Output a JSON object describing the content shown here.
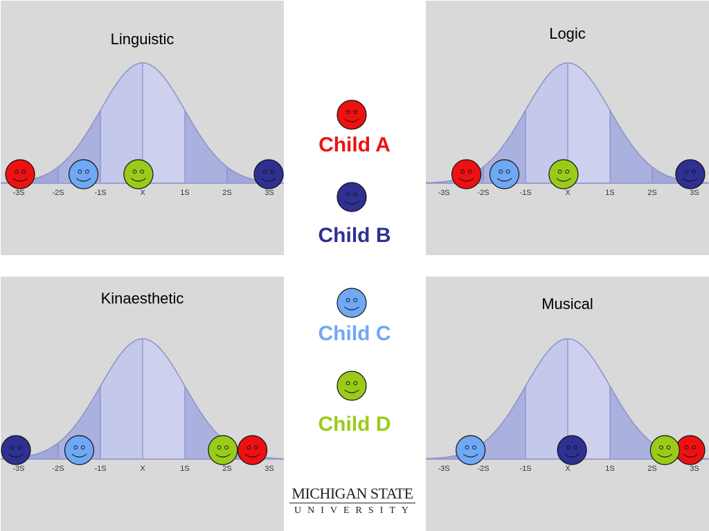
{
  "children": [
    {
      "id": "A",
      "label": "Child A",
      "color": "#ee1111"
    },
    {
      "id": "B",
      "label": "Child B",
      "color": "#2e3192"
    },
    {
      "id": "C",
      "label": "Child C",
      "color": "#6fa8f5"
    },
    {
      "id": "D",
      "label": "Child D",
      "color": "#99cc1a"
    }
  ],
  "axis_ticks": [
    "-3S",
    "-2S",
    "-1S",
    "X",
    "1S",
    "2S",
    "3S"
  ],
  "chart_data": [
    {
      "type": "scatter",
      "title": "Linguistic",
      "positions_in_sd": {
        "A": -2.9,
        "B": 3.0,
        "C": -1.4,
        "D": -0.1
      }
    },
    {
      "type": "scatter",
      "title": "Logic",
      "positions_in_sd": {
        "A": -2.4,
        "B": 2.9,
        "C": -1.5,
        "D": -0.1
      }
    },
    {
      "type": "scatter",
      "title": "Kinaesthetic",
      "positions_in_sd": {
        "A": 2.6,
        "B": -3.1,
        "C": -1.5,
        "D": 1.9
      }
    },
    {
      "type": "scatter",
      "title": "Musical",
      "positions_in_sd": {
        "A": 2.9,
        "B": 0.1,
        "C": -2.3,
        "D": 2.3
      }
    }
  ],
  "logo": {
    "line1": "MICHIGAN STATE",
    "line2": "UNIVERSITY"
  }
}
